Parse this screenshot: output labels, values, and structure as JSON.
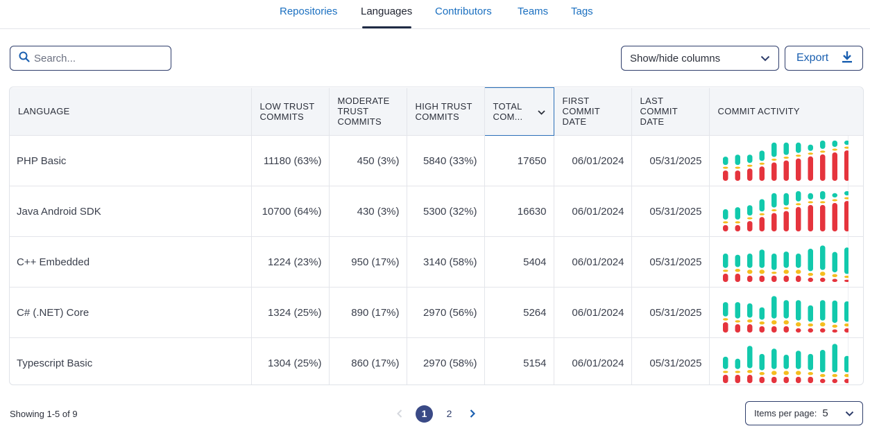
{
  "tabs": [
    {
      "label": "Repositories"
    },
    {
      "label": "Languages"
    },
    {
      "label": "Contributors"
    },
    {
      "label": "Teams"
    },
    {
      "label": "Tags"
    }
  ],
  "search": {
    "placeholder": "Search..."
  },
  "toolbar": {
    "show_hide_label": "Show/hide columns",
    "export_label": "Export"
  },
  "table": {
    "headers": {
      "language": "LANGUAGE",
      "low": [
        "LOW TRUST",
        "COMMITS"
      ],
      "moderate": [
        "MODERATE",
        "TRUST",
        "COMMITS"
      ],
      "high": [
        "HIGH TRUST",
        "COMMITS"
      ],
      "total": [
        "TOTAL",
        "COM..."
      ],
      "first": [
        "FIRST",
        "COMMIT",
        "DATE"
      ],
      "last": [
        "LAST",
        "COMMIT",
        "DATE"
      ],
      "activity": "COMMIT ACTIVITY"
    },
    "rows": [
      {
        "language": "PHP Basic",
        "low": "11180 (63%)",
        "moderate": "450 (3%)",
        "high": "5840 (33%)",
        "total": "17650",
        "first": "06/01/2024",
        "last": "05/31/2025",
        "activity": [
          [
            0.25,
            0.05,
            0.3
          ],
          [
            0.3,
            0.05,
            0.3
          ],
          [
            0.25,
            0.05,
            0.35
          ],
          [
            0.3,
            0.05,
            0.4
          ],
          [
            0.4,
            0.05,
            0.5
          ],
          [
            0.35,
            0.05,
            0.55
          ],
          [
            0.3,
            0.05,
            0.6
          ],
          [
            0.2,
            0.05,
            0.65
          ],
          [
            0.25,
            0.05,
            0.7
          ],
          [
            0.2,
            0.05,
            0.75
          ],
          [
            0.15,
            0.05,
            0.8
          ]
        ]
      },
      {
        "language": "Java Android SDK",
        "low": "10700 (64%)",
        "moderate": "430 (3%)",
        "high": "5300 (32%)",
        "total": "16630",
        "first": "06/01/2024",
        "last": "05/31/2025",
        "activity": [
          [
            0.3,
            0.05,
            0.2
          ],
          [
            0.35,
            0.05,
            0.2
          ],
          [
            0.3,
            0.05,
            0.3
          ],
          [
            0.35,
            0.05,
            0.4
          ],
          [
            0.4,
            0.05,
            0.5
          ],
          [
            0.35,
            0.05,
            0.55
          ],
          [
            0.3,
            0.05,
            0.65
          ],
          [
            0.2,
            0.05,
            0.7
          ],
          [
            0.25,
            0.05,
            0.7
          ],
          [
            0.15,
            0.05,
            0.75
          ],
          [
            0.15,
            0.05,
            0.8
          ]
        ]
      },
      {
        "language": "C++ Embedded",
        "low": "1224 (23%)",
        "moderate": "950 (17%)",
        "high": "3140 (58%)",
        "total": "5404",
        "first": "06/01/2024",
        "last": "05/31/2025",
        "activity": [
          [
            0.4,
            0.1,
            0.25
          ],
          [
            0.35,
            0.12,
            0.25
          ],
          [
            0.4,
            0.15,
            0.2
          ],
          [
            0.5,
            0.15,
            0.2
          ],
          [
            0.45,
            0.1,
            0.2
          ],
          [
            0.45,
            0.15,
            0.2
          ],
          [
            0.4,
            0.15,
            0.2
          ],
          [
            0.6,
            0.12,
            0.15
          ],
          [
            0.65,
            0.15,
            0.15
          ],
          [
            0.55,
            0.12,
            0.12
          ],
          [
            0.7,
            0.1,
            0.1
          ]
        ]
      },
      {
        "language": "C# (.NET) Core",
        "low": "1324 (25%)",
        "moderate": "890 (17%)",
        "high": "2970 (56%)",
        "total": "5264",
        "first": "06/01/2024",
        "last": "05/31/2025",
        "activity": [
          [
            0.4,
            0.1,
            0.3
          ],
          [
            0.45,
            0.1,
            0.25
          ],
          [
            0.4,
            0.12,
            0.25
          ],
          [
            0.35,
            0.12,
            0.2
          ],
          [
            0.6,
            0.15,
            0.2
          ],
          [
            0.5,
            0.15,
            0.2
          ],
          [
            0.55,
            0.15,
            0.15
          ],
          [
            0.45,
            0.12,
            0.15
          ],
          [
            0.55,
            0.15,
            0.15
          ],
          [
            0.6,
            0.12,
            0.12
          ],
          [
            0.55,
            0.12,
            0.15
          ]
        ]
      },
      {
        "language": "Typescript Basic",
        "low": "1304 (25%)",
        "moderate": "860 (17%)",
        "high": "2970 (58%)",
        "total": "5154",
        "first": "06/01/2024",
        "last": "05/31/2025",
        "activity": [
          [
            0.35,
            0.1,
            0.25
          ],
          [
            0.3,
            0.1,
            0.25
          ],
          [
            0.6,
            0.12,
            0.25
          ],
          [
            0.45,
            0.12,
            0.2
          ],
          [
            0.55,
            0.15,
            0.2
          ],
          [
            0.4,
            0.15,
            0.2
          ],
          [
            0.5,
            0.15,
            0.2
          ],
          [
            0.45,
            0.12,
            0.2
          ],
          [
            0.6,
            0.12,
            0.15
          ],
          [
            0.75,
            0.12,
            0.15
          ],
          [
            0.45,
            0.12,
            0.15
          ]
        ]
      }
    ]
  },
  "footer": {
    "showing": "Showing 1-5 of 9",
    "pages": [
      "1",
      "2"
    ],
    "current_page": "1",
    "items_per_page_label": "Items per page:",
    "items_per_page_value": "5"
  },
  "colors": {
    "high": "#12c9ac",
    "moderate": "#f5bd1f",
    "low": "#e5343d",
    "accent": "#1a6fc0",
    "border": "#2e3d6b"
  }
}
